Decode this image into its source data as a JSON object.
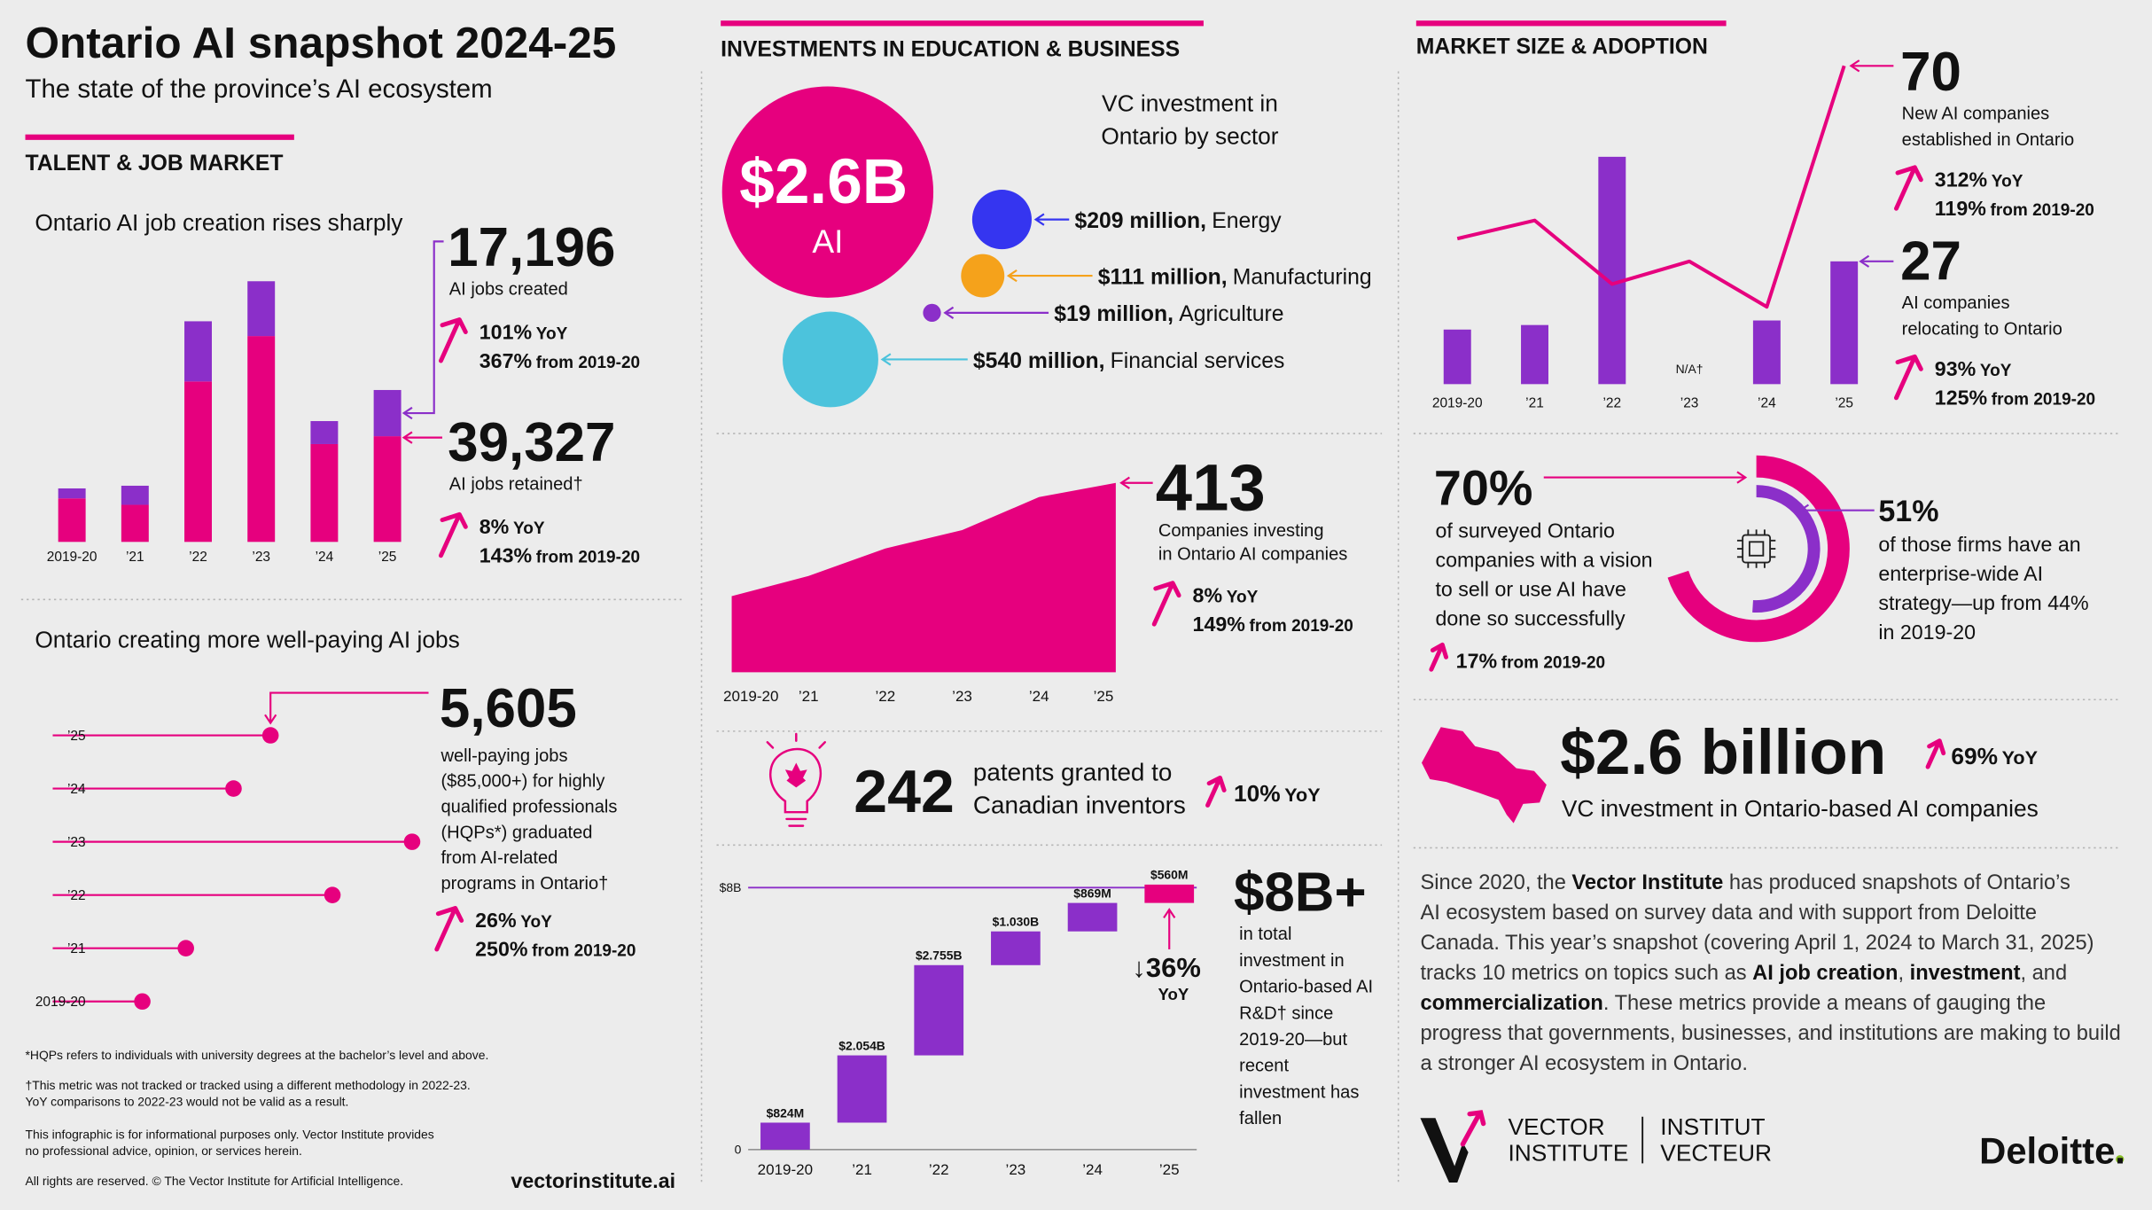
{
  "header": {
    "title": "Ontario AI snapshot 2024-25",
    "subtitle": "The state of the province’s AI ecosystem"
  },
  "sections": [
    "TALENT & JOB MARKET",
    "INVESTMENTS IN EDUCATION & BUSINESS",
    "MARKET SIZE & ADOPTION"
  ],
  "chart_data": [
    {
      "type": "stacked-bar",
      "title": "Ontario AI job creation rises sharply",
      "categories": [
        "2019-20",
        "’21",
        "’22",
        "’23",
        "’24",
        "’25"
      ],
      "series": [
        {
          "name": "AI jobs retained†",
          "color": "#e6007e",
          "values": [
            16200,
            13800,
            59700,
            76600,
            36400,
            39327
          ],
          "value_labels": [
            null,
            null,
            null,
            null,
            null,
            "39,327"
          ],
          "stats": [
            {
              "value": "8%",
              "label": "YoY"
            },
            {
              "value": "143%",
              "label": "from 2019-20"
            }
          ]
        },
        {
          "name": "AI jobs created",
          "color": "#8b2fc9",
          "values": [
            3700,
            7100,
            22400,
            20400,
            8555,
            17196
          ],
          "value_labels": [
            null,
            null,
            null,
            null,
            null,
            "17,196"
          ],
          "stats": [
            {
              "value": "101%",
              "label": "YoY"
            },
            {
              "value": "367%",
              "label": "from 2019-20"
            }
          ]
        }
      ]
    },
    {
      "type": "lollipop",
      "title": "Ontario creating more well-paying AI jobs",
      "categories": [
        "’25",
        "’24",
        "’23",
        "’22",
        "’21",
        "2019-20"
      ],
      "color": "#e6007e",
      "values": [
        5605,
        4450,
        10030,
        7540,
        2960,
        1600
      ],
      "value_labels": [
        "5,605",
        null,
        null,
        null,
        null,
        null
      ],
      "label": [
        "well-paying jobs",
        "($85,000+) for highly",
        "qualified professionals",
        "(HQPs*) graduated",
        "from AI-related",
        "programs in Ontario†"
      ],
      "stats": [
        {
          "value": "26%",
          "label": "YoY"
        },
        {
          "value": "250%",
          "label": "from 2019-20"
        }
      ]
    },
    {
      "type": "bubble",
      "title": [
        "VC investment in",
        "Ontario by sector"
      ],
      "total": {
        "value": 2600,
        "value_label": "$2.6B",
        "label": "AI",
        "color": "#e6007e"
      },
      "categories": [
        "Energy",
        "Manufacturing",
        "Agriculture",
        "Financial services"
      ],
      "values": [
        209,
        111,
        19,
        540
      ],
      "value_labels": [
        "$209 million,",
        "$111 million,",
        "$19 million,",
        "$540 million,"
      ],
      "colors": [
        "#3535f0",
        "#f5a21b",
        "#8b2fc9",
        "#4cc3dc"
      ]
    },
    {
      "type": "area",
      "categories": [
        "2019-20",
        "’21",
        "’22",
        "’23",
        "’24",
        "’25"
      ],
      "color": "#e6007e",
      "values": [
        166,
        210,
        270,
        310,
        382,
        413
      ],
      "label": [
        "Companies investing",
        "in Ontario AI companies"
      ],
      "stats": [
        {
          "value": "8%",
          "label": "YoY"
        },
        {
          "value": "149%",
          "label": "from 2019-20"
        }
      ]
    },
    {
      "type": "waterfall",
      "categories": [
        "2019-20",
        "’21",
        "’22",
        "’23",
        "’24",
        "’25"
      ],
      "values": [
        824,
        2054,
        2755,
        1030,
        869,
        560
      ],
      "value_labels": [
        "$824M",
        "$2.054B",
        "$2.755B",
        "$1.030B",
        "$869M",
        "$560M"
      ],
      "colors": [
        "#8b2fc9",
        "#8b2fc9",
        "#8b2fc9",
        "#8b2fc9",
        "#8b2fc9",
        "#e6007e"
      ],
      "ylim": [
        0,
        8000
      ],
      "yticks": [
        0,
        {
          "value": 8000,
          "label": "$8B"
        }
      ],
      "total": {
        "value": 8000,
        "value_label": "$8B+",
        "label": [
          "in total",
          "investment in",
          "Ontario-based AI",
          "R&D† since",
          "2019-20—but",
          "recent",
          "investment has",
          "fallen"
        ]
      },
      "change": {
        "value": -36,
        "value_label": "↓36%",
        "label": "YoY"
      }
    },
    {
      "type": "bar-line",
      "categories": [
        "2019-20",
        "’21",
        "’22",
        "’23",
        "’24",
        "’25"
      ],
      "series": [
        {
          "name": [
            "New AI companies",
            "established in Ontario"
          ],
          "type": "line",
          "color": "#e6007e",
          "values": [
            32,
            36,
            22,
            27,
            17,
            70
          ],
          "stats": [
            {
              "value": "312%",
              "label": "YoY"
            },
            {
              "value": "119%",
              "label": "from 2019-20"
            }
          ]
        },
        {
          "name": [
            "AI companies",
            "relocating to Ontario"
          ],
          "type": "bar",
          "color": "#8b2fc9",
          "values": [
            12,
            13,
            50,
            null,
            14,
            27
          ],
          "null_label": "N/A†",
          "stats": [
            {
              "value": "93%",
              "label": "YoY"
            },
            {
              "value": "125%",
              "label": "from 2019-20"
            }
          ]
        }
      ]
    },
    {
      "type": "donut",
      "values": [
        70,
        51
      ],
      "value_labels": [
        "70%",
        "51%"
      ],
      "colors": [
        "#e6007e",
        "#8b2fc9"
      ],
      "labels": [
        [
          "of surveyed Ontario",
          "companies with a vision",
          "to sell or use AI have",
          "done so successfully"
        ],
        [
          "of those firms have an",
          "enterprise-wide AI",
          "strategy—up from 44%",
          "in 2019-20"
        ]
      ],
      "stats": [
        {
          "value": "17%",
          "label": "from 2019-20"
        }
      ]
    }
  ],
  "patents": {
    "value": 242,
    "label": [
      "patents granted to",
      "Canadian inventors"
    ],
    "stat": {
      "value": "10%",
      "label": "YoY"
    }
  },
  "vc_total": {
    "value_label": "$2.6 billion",
    "label": "VC investment in Ontario-based AI companies",
    "stat": {
      "value": "69%",
      "label": "YoY"
    }
  },
  "about": [
    [
      "Since 2020, the ",
      {
        "text": "Vector Institute",
        "bold": true
      },
      " has produced snapshots of Ontario’s"
    ],
    [
      "AI ecosystem based on survey data and with support from Deloitte"
    ],
    [
      "Canada. This year’s snapshot (covering April 1, 2024 to March 31, 2025)"
    ],
    [
      "tracks 10 metrics on topics such as ",
      {
        "text": "AI job creation",
        "bold": true
      },
      ", ",
      {
        "text": "investment",
        "bold": true
      },
      ", and"
    ],
    [
      {
        "text": "commercialization",
        "bold": true
      },
      ". These metrics provide a means of gauging the"
    ],
    [
      "progress that governments, businesses, and institutions are making to build"
    ],
    [
      "a stronger AI ecosystem in Ontario."
    ]
  ],
  "footnotes": [
    "*HQPs refers to individuals with university degrees at the bachelor’s level and above.",
    "†This metric was not tracked or tracked using a different methodology in 2022-23.",
    "YoY comparisons to 2022-23 would not be valid as a result.",
    "This infographic is for informational purposes only. Vector Institute provides",
    "no professional advice, opinion, or services herein.",
    "All rights are reserved. © The Vector Institute for Artificial Intelligence."
  ],
  "url": "vectorinstitute.ai",
  "logos": {
    "vector": [
      "VECTOR",
      "INSTITUTE"
    ],
    "vecteur": [
      "INSTITUT",
      "VECTEUR"
    ],
    "deloitte": "Deloitte."
  }
}
